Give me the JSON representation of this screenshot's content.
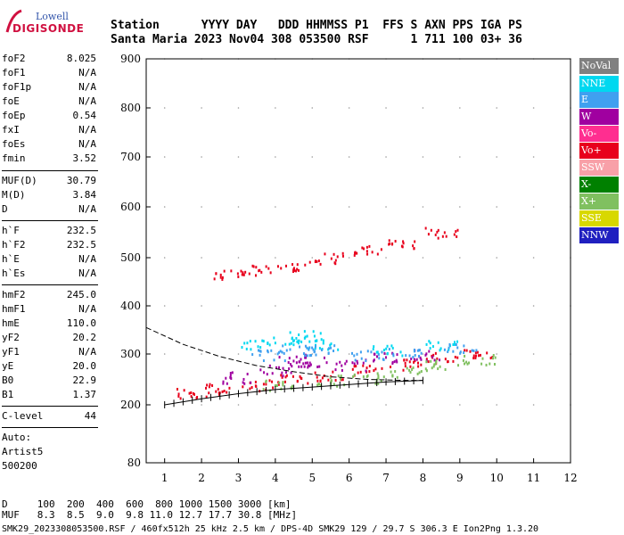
{
  "logo": {
    "line1": "Lowell",
    "line2": "DIGISONDE"
  },
  "header": {
    "line1": "Station      YYYY DAY   DDD HHMMSS P1  FFS S AXN PPS IGA PS",
    "line2": "Santa Maria 2023 Nov04 308 053500 RSF      1 711 100 03+ 36"
  },
  "params": [
    {
      "name": "foF2",
      "value": "8.025"
    },
    {
      "name": "foF1",
      "value": "N/A"
    },
    {
      "name": "foF1p",
      "value": "N/A"
    },
    {
      "name": "foE",
      "value": "N/A"
    },
    {
      "name": "foEp",
      "value": "0.54"
    },
    {
      "name": "fxI",
      "value": "N/A"
    },
    {
      "name": "foEs",
      "value": "N/A"
    },
    {
      "name": "fmin",
      "value": "3.52"
    },
    {
      "name": "MUF(D)",
      "value": "30.79"
    },
    {
      "name": "M(D)",
      "value": "3.84"
    },
    {
      "name": "D",
      "value": "N/A"
    },
    {
      "name": "h`F",
      "value": "232.5"
    },
    {
      "name": "h`F2",
      "value": "232.5"
    },
    {
      "name": "h`E",
      "value": "N/A"
    },
    {
      "name": "h`Es",
      "value": "N/A"
    },
    {
      "name": "hmF2",
      "value": "245.0"
    },
    {
      "name": "hmF1",
      "value": "N/A"
    },
    {
      "name": "hmE",
      "value": "110.0"
    },
    {
      "name": "yF2",
      "value": "20.2"
    },
    {
      "name": "yF1",
      "value": "N/A"
    },
    {
      "name": "yE",
      "value": "20.0"
    },
    {
      "name": "B0",
      "value": "22.9"
    },
    {
      "name": "B1",
      "value": "1.37"
    },
    {
      "name": "C-level",
      "value": "44"
    }
  ],
  "auto": {
    "line1": "Auto:",
    "line2": "Artist5",
    "line3": "500200"
  },
  "legend": [
    {
      "label": "NoVal",
      "color": "#808080"
    },
    {
      "label": "NNE",
      "color": "#00d8f0"
    },
    {
      "label": "E",
      "color": "#40a0f0"
    },
    {
      "label": "W",
      "color": "#a000a0"
    },
    {
      "label": "Vo-",
      "color": "#ff2e90"
    },
    {
      "label": "Vo+",
      "color": "#e8001c"
    },
    {
      "label": "SSW",
      "color": "#f8a0a8"
    },
    {
      "label": "X-",
      "color": "#008000"
    },
    {
      "label": "X+",
      "color": "#80c060"
    },
    {
      "label": "SSE",
      "color": "#d8d800"
    },
    {
      "label": "NNW",
      "color": "#2020c0"
    }
  ],
  "chart_data": {
    "type": "scatter",
    "title": "",
    "xlabel": "",
    "ylabel": "",
    "xlim": [
      0.5,
      12
    ],
    "ylim": [
      80,
      900
    ],
    "x_ticks": [
      "1",
      "2",
      "3",
      "4",
      "5",
      "6",
      "7",
      "8",
      "9",
      "10",
      "11",
      "12"
    ],
    "y_ticks": [
      "80",
      "200",
      "300",
      "400",
      "500",
      "600",
      "700",
      "800",
      "900"
    ],
    "series": [
      {
        "name": "Vo+",
        "values": [
          [
            1.7,
            225
          ],
          [
            2.5,
            232
          ],
          [
            3.5,
            240
          ],
          [
            4.5,
            250
          ],
          [
            5.5,
            260
          ],
          [
            6.5,
            270
          ],
          [
            7.5,
            280
          ],
          [
            8.5,
            295
          ],
          [
            9.5,
            305
          ],
          [
            2.7,
            465
          ],
          [
            3.5,
            475
          ],
          [
            4.5,
            485
          ],
          [
            5.5,
            500
          ],
          [
            6.5,
            515
          ],
          [
            7.5,
            530
          ],
          [
            8.5,
            550
          ]
        ]
      },
      {
        "name": "W",
        "values": [
          [
            3.0,
            255
          ],
          [
            4.0,
            270
          ],
          [
            4.5,
            290
          ],
          [
            5.0,
            285
          ],
          [
            6.0,
            280
          ],
          [
            7.0,
            295
          ],
          [
            8.0,
            300
          ]
        ]
      },
      {
        "name": "NNE",
        "values": [
          [
            3.5,
            320
          ],
          [
            4.3,
            330
          ],
          [
            4.8,
            340
          ],
          [
            5.3,
            320
          ],
          [
            7.0,
            310
          ],
          [
            8.5,
            320
          ]
        ]
      },
      {
        "name": "E",
        "values": [
          [
            3.8,
            300
          ],
          [
            4.6,
            310
          ],
          [
            5.2,
            310
          ],
          [
            6.5,
            300
          ],
          [
            7.5,
            305
          ],
          [
            9.0,
            315
          ]
        ]
      },
      {
        "name": "X+",
        "values": [
          [
            4.0,
            240
          ],
          [
            5.5,
            250
          ],
          [
            6.5,
            255
          ],
          [
            7.5,
            265
          ],
          [
            8.5,
            280
          ],
          [
            9.5,
            290
          ]
        ]
      }
    ],
    "virtual_height_trace": [
      [
        1.0,
        200
      ],
      [
        2.0,
        212
      ],
      [
        3.0,
        222
      ],
      [
        4.0,
        230
      ],
      [
        5.0,
        235
      ],
      [
        6.0,
        240
      ],
      [
        7.0,
        245
      ],
      [
        8.0,
        248
      ]
    ],
    "profile_curve": [
      [
        0.5,
        355
      ],
      [
        1.5,
        320
      ],
      [
        2.5,
        295
      ],
      [
        3.5,
        277
      ],
      [
        4.5,
        265
      ],
      [
        5.5,
        255
      ],
      [
        6.5,
        250
      ],
      [
        7.5,
        248
      ],
      [
        8.0,
        248
      ]
    ]
  },
  "footer": {
    "d_line": "D     100  200  400  600  800 1000 1500 3000 [km]",
    "muf_line": "MUF   8.3  8.5  9.0  9.8 11.0 12.7 17.7 30.8 [MHz]",
    "file_line": "SMK29_2023308053500.RSF / 460fx512h 25 kHz 2.5 km / DPS-4D SMK29 129 / 29.7 S 306.3 E Ion2Png 1.3.20"
  }
}
